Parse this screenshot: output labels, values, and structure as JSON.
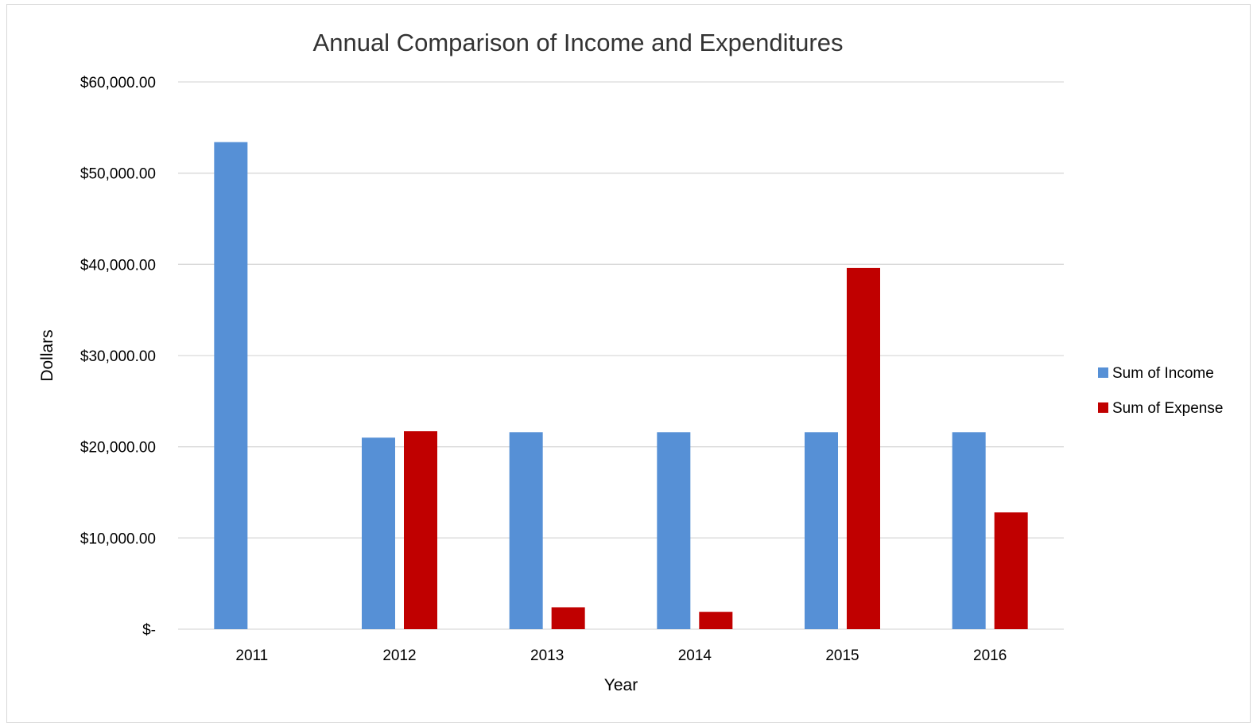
{
  "chart_data": {
    "type": "bar",
    "title": "Annual Comparison of Income and Expenditures",
    "xlabel": "Year",
    "ylabel": "Dollars",
    "categories": [
      "2011",
      "2012",
      "2013",
      "2014",
      "2015",
      "2016"
    ],
    "series": [
      {
        "name": "Sum of Income",
        "color": "#5690d6",
        "values": [
          53400,
          21000,
          21600,
          21600,
          21600,
          21600
        ]
      },
      {
        "name": "Sum of Expense",
        "color": "#c00000",
        "values": [
          0,
          21700,
          2400,
          1900,
          39600,
          12800
        ]
      }
    ],
    "ylim": [
      0,
      60000
    ],
    "yticks": [
      0,
      10000,
      20000,
      30000,
      40000,
      50000,
      60000
    ],
    "ytick_labels": [
      "$-",
      "$10,000.00",
      "$20,000.00",
      "$30,000.00",
      "$40,000.00",
      "$50,000.00",
      "$60,000.00"
    ],
    "grid": true,
    "legend_position": "right"
  }
}
